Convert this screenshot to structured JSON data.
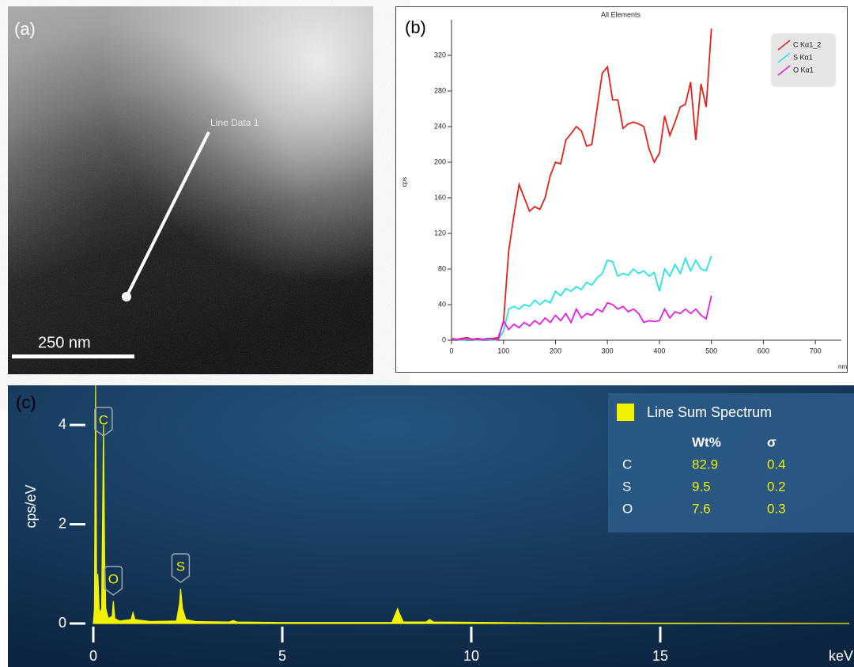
{
  "panel_a": {
    "label": "(a)",
    "line_label": "Line Data 1",
    "scale_bar": "250 nm"
  },
  "chart_data": [
    {
      "type": "line",
      "panel_label": "(b)",
      "title": "All Elements",
      "x_label": "nm",
      "y_label": "cps",
      "x": [
        0,
        10,
        20,
        30,
        40,
        50,
        60,
        70,
        80,
        90,
        100,
        110,
        120,
        130,
        140,
        150,
        160,
        170,
        180,
        190,
        200,
        210,
        220,
        230,
        240,
        250,
        260,
        270,
        280,
        290,
        300,
        310,
        320,
        330,
        340,
        350,
        360,
        370,
        380,
        390,
        400,
        410,
        420,
        430,
        440,
        450,
        460,
        470,
        480,
        490,
        500
      ],
      "xlim": [
        0,
        750
      ],
      "xticks": [
        0,
        100,
        200,
        300,
        400,
        500,
        600,
        700
      ],
      "ylim": [
        0,
        360
      ],
      "yticks": [
        0,
        40,
        80,
        120,
        160,
        200,
        240,
        280,
        320
      ],
      "legend": "upper right",
      "series": [
        {
          "name": "C Kα1_2",
          "color": "#e8201c",
          "values": [
            2,
            1,
            2,
            3,
            1,
            2,
            1,
            2,
            2,
            3,
            20,
            100,
            140,
            175,
            160,
            145,
            150,
            147,
            160,
            185,
            200,
            198,
            225,
            232,
            240,
            235,
            218,
            220,
            260,
            300,
            307,
            270,
            270,
            238,
            243,
            245,
            243,
            240,
            215,
            200,
            210,
            252,
            230,
            245,
            262,
            265,
            290,
            225,
            288,
            262,
            350
          ]
        },
        {
          "name": "S Kα1",
          "color": "#22e6e6",
          "values": [
            1,
            1,
            0,
            1,
            1,
            0,
            1,
            1,
            0,
            1,
            10,
            35,
            38,
            35,
            40,
            38,
            45,
            40,
            45,
            42,
            55,
            50,
            58,
            55,
            60,
            57,
            65,
            62,
            70,
            75,
            90,
            88,
            72,
            75,
            73,
            80,
            75,
            78,
            72,
            76,
            55,
            80,
            72,
            85,
            75,
            92,
            78,
            90,
            80,
            78,
            95
          ]
        },
        {
          "name": "O Kα1",
          "color": "#e61ee6",
          "values": [
            1,
            1,
            1,
            2,
            1,
            1,
            1,
            2,
            1,
            1,
            22,
            12,
            18,
            14,
            20,
            16,
            22,
            18,
            25,
            20,
            28,
            22,
            30,
            20,
            35,
            25,
            30,
            28,
            35,
            32,
            42,
            40,
            35,
            38,
            32,
            35,
            30,
            20,
            22,
            21,
            22,
            35,
            25,
            32,
            30,
            35,
            30,
            35,
            28,
            24,
            50
          ]
        }
      ]
    },
    {
      "type": "spectrum",
      "panel_label": "(c)",
      "x_label": "keV",
      "y_label": "cps/eV",
      "color": "#f2f200",
      "x": [
        0,
        0.03,
        0.06,
        0.09,
        0.12,
        0.16,
        0.22,
        0.27,
        0.3,
        0.33,
        0.4,
        0.5,
        0.53,
        0.57,
        0.7,
        1.0,
        1.05,
        1.1,
        1.5,
        2.2,
        2.28,
        2.31,
        2.36,
        2.45,
        2.7,
        3.6,
        3.7,
        3.8,
        5,
        7.9,
        8.0,
        8.05,
        8.1,
        8.2,
        8.8,
        8.9,
        9.0,
        12,
        20
      ],
      "values": [
        0,
        0.3,
        4.8,
        0.5,
        1.0,
        0.2,
        0.3,
        4.0,
        1.3,
        0.3,
        0.1,
        0.15,
        0.45,
        0.1,
        0.05,
        0.08,
        0.22,
        0.08,
        0.04,
        0.05,
        0.4,
        0.7,
        0.3,
        0.08,
        0.04,
        0.03,
        0.06,
        0.03,
        0.02,
        0.02,
        0.2,
        0.3,
        0.2,
        0.03,
        0.03,
        0.08,
        0.03,
        0.01,
        0
      ],
      "xlim": [
        0,
        20
      ],
      "xticks": [
        0,
        5,
        10,
        15
      ],
      "ylim": [
        0,
        4.8
      ],
      "yticks": [
        0,
        2,
        4
      ],
      "peak_labels": [
        {
          "label": "C",
          "x": 0.27
        },
        {
          "label": "O",
          "x": 0.53
        },
        {
          "label": "S",
          "x": 2.31
        }
      ],
      "table": {
        "title": "Line Sum Spectrum",
        "columns": [
          "Wt%",
          "σ"
        ],
        "rows": [
          [
            "C",
            82.9,
            0.4
          ],
          [
            "S",
            9.5,
            0.2
          ],
          [
            "O",
            7.6,
            0.3
          ]
        ]
      }
    }
  ]
}
